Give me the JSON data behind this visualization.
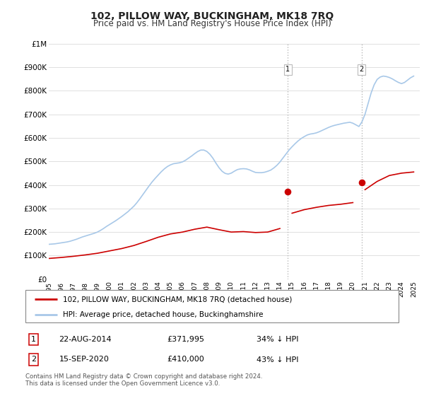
{
  "title": "102, PILLOW WAY, BUCKINGHAM, MK18 7RQ",
  "subtitle": "Price paid vs. HM Land Registry's House Price Index (HPI)",
  "ylim": [
    0,
    1000000
  ],
  "yticks": [
    0,
    100000,
    200000,
    300000,
    400000,
    500000,
    600000,
    700000,
    800000,
    900000,
    1000000
  ],
  "ytick_labels": [
    "£0",
    "£100K",
    "£200K",
    "£300K",
    "£400K",
    "£500K",
    "£600K",
    "£700K",
    "£800K",
    "£900K",
    "£1M"
  ],
  "xlim_start": 1995.0,
  "xlim_end": 2025.5,
  "purchase1_date": 2014.64,
  "purchase1_price": 371995,
  "purchase2_date": 2020.71,
  "purchase2_price": 410000,
  "hpi_color": "#a8c8e8",
  "price_color": "#cc0000",
  "dot_color": "#cc0000",
  "vline_color": "#c0c0c0",
  "background_color": "#ffffff",
  "grid_color": "#e0e0e0",
  "legend_entry1": "102, PILLOW WAY, BUCKINGHAM, MK18 7RQ (detached house)",
  "legend_entry2": "HPI: Average price, detached house, Buckinghamshire",
  "table_row1": [
    "1",
    "22-AUG-2014",
    "£371,995",
    "34% ↓ HPI"
  ],
  "table_row2": [
    "2",
    "15-SEP-2020",
    "£410,000",
    "43% ↓ HPI"
  ],
  "footer": "Contains HM Land Registry data © Crown copyright and database right 2024.\nThis data is licensed under the Open Government Licence v3.0.",
  "hpi_years": [
    1995.0,
    1995.25,
    1995.5,
    1995.75,
    1996.0,
    1996.25,
    1996.5,
    1996.75,
    1997.0,
    1997.25,
    1997.5,
    1997.75,
    1998.0,
    1998.25,
    1998.5,
    1998.75,
    1999.0,
    1999.25,
    1999.5,
    1999.75,
    2000.0,
    2000.25,
    2000.5,
    2000.75,
    2001.0,
    2001.25,
    2001.5,
    2001.75,
    2002.0,
    2002.25,
    2002.5,
    2002.75,
    2003.0,
    2003.25,
    2003.5,
    2003.75,
    2004.0,
    2004.25,
    2004.5,
    2004.75,
    2005.0,
    2005.25,
    2005.5,
    2005.75,
    2006.0,
    2006.25,
    2006.5,
    2006.75,
    2007.0,
    2007.25,
    2007.5,
    2007.75,
    2008.0,
    2008.25,
    2008.5,
    2008.75,
    2009.0,
    2009.25,
    2009.5,
    2009.75,
    2010.0,
    2010.25,
    2010.5,
    2010.75,
    2011.0,
    2011.25,
    2011.5,
    2011.75,
    2012.0,
    2012.25,
    2012.5,
    2012.75,
    2013.0,
    2013.25,
    2013.5,
    2013.75,
    2014.0,
    2014.25,
    2014.5,
    2014.75,
    2015.0,
    2015.25,
    2015.5,
    2015.75,
    2016.0,
    2016.25,
    2016.5,
    2016.75,
    2017.0,
    2017.25,
    2017.5,
    2017.75,
    2018.0,
    2018.25,
    2018.5,
    2018.75,
    2019.0,
    2019.25,
    2019.5,
    2019.75,
    2020.0,
    2020.25,
    2020.5,
    2020.75,
    2021.0,
    2021.25,
    2021.5,
    2021.75,
    2022.0,
    2022.25,
    2022.5,
    2022.75,
    2023.0,
    2023.25,
    2023.5,
    2023.75,
    2024.0,
    2024.25,
    2024.5,
    2024.75,
    2025.0
  ],
  "hpi_values": [
    148000,
    149000,
    150000,
    152000,
    154000,
    156000,
    158000,
    161000,
    165000,
    169000,
    174000,
    179000,
    183000,
    187000,
    191000,
    195000,
    200000,
    207000,
    215000,
    224000,
    232000,
    240000,
    248000,
    257000,
    266000,
    276000,
    286000,
    298000,
    310000,
    325000,
    342000,
    360000,
    378000,
    396000,
    413000,
    428000,
    442000,
    456000,
    468000,
    478000,
    485000,
    490000,
    492000,
    494000,
    498000,
    505000,
    514000,
    523000,
    533000,
    542000,
    548000,
    548000,
    542000,
    530000,
    513000,
    492000,
    473000,
    458000,
    449000,
    446000,
    450000,
    458000,
    465000,
    468000,
    469000,
    468000,
    464000,
    458000,
    453000,
    452000,
    452000,
    454000,
    458000,
    463000,
    472000,
    483000,
    497000,
    514000,
    531000,
    548000,
    562000,
    575000,
    587000,
    597000,
    605000,
    612000,
    616000,
    618000,
    621000,
    626000,
    632000,
    638000,
    644000,
    649000,
    653000,
    656000,
    659000,
    662000,
    664000,
    666000,
    662000,
    655000,
    648000,
    668000,
    700000,
    745000,
    790000,
    825000,
    848000,
    858000,
    862000,
    860000,
    856000,
    850000,
    842000,
    835000,
    830000,
    835000,
    845000,
    855000,
    862000
  ],
  "price_years": [
    1995.0,
    1996.0,
    1997.0,
    1998.0,
    1999.0,
    2000.0,
    2001.0,
    2002.0,
    2003.0,
    2004.0,
    2005.0,
    2006.0,
    2007.0,
    2008.0,
    2009.0,
    2010.0,
    2011.0,
    2012.0,
    2013.0,
    2014.0,
    2014.64,
    2015.0,
    2016.0,
    2017.0,
    2018.0,
    2019.0,
    2020.0,
    2020.71,
    2021.0,
    2022.0,
    2023.0,
    2024.0,
    2025.0
  ],
  "price_values": [
    88000,
    92000,
    97000,
    103000,
    110000,
    120000,
    130000,
    143000,
    160000,
    178000,
    192000,
    200000,
    212000,
    221000,
    210000,
    200000,
    202000,
    198000,
    200000,
    215000,
    371995,
    280000,
    295000,
    305000,
    313000,
    318000,
    325000,
    410000,
    380000,
    415000,
    440000,
    450000,
    455000
  ]
}
